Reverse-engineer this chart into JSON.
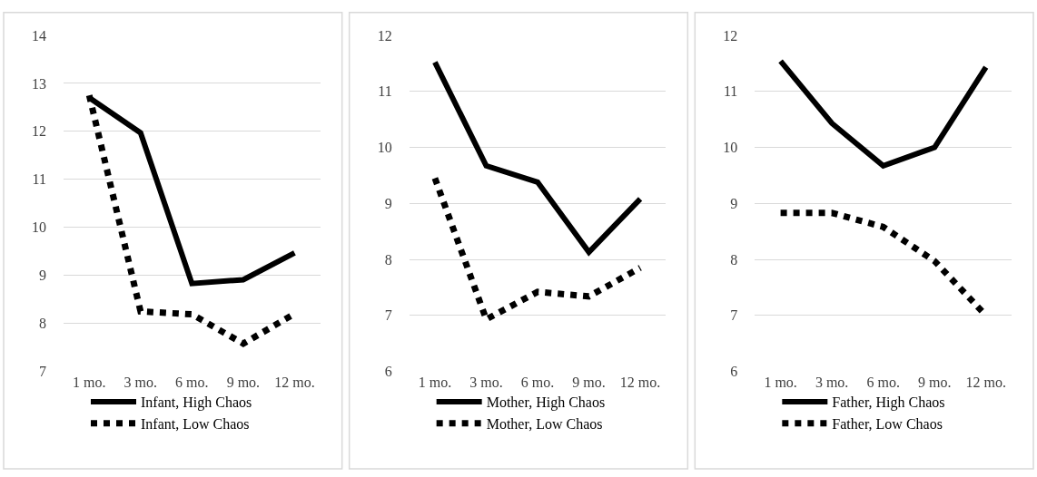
{
  "chart_data": [
    {
      "type": "line",
      "categories": [
        "1 mo.",
        "3 mo.",
        "6 mo.",
        "9 mo.",
        "12 mo."
      ],
      "ylim": [
        7,
        14
      ],
      "yticks": [
        7,
        8,
        9,
        10,
        11,
        12,
        13,
        14
      ],
      "grid": "y",
      "legend": "bottom",
      "series": [
        {
          "name": "Infant, High Chaos",
          "color": "#000000",
          "line_style": "solid",
          "values": [
            12.7,
            11.97,
            8.83,
            8.91,
            9.47
          ]
        },
        {
          "name": "Infant, Low Chaos",
          "color": "#000000",
          "line_style": "dotted",
          "values": [
            12.75,
            8.25,
            8.19,
            7.58,
            8.2
          ]
        }
      ]
    },
    {
      "type": "line",
      "categories": [
        "1 mo.",
        "3 mo.",
        "6 mo.",
        "9 mo.",
        "12 mo."
      ],
      "ylim": [
        6,
        12
      ],
      "yticks": [
        6,
        7,
        8,
        9,
        10,
        11,
        12
      ],
      "grid": "y",
      "legend": "bottom",
      "series": [
        {
          "name": "Mother, High Chaos",
          "color": "#000000",
          "line_style": "solid",
          "values": [
            11.52,
            9.67,
            9.38,
            8.13,
            9.08
          ]
        },
        {
          "name": "Mother, Low Chaos",
          "color": "#000000",
          "line_style": "dotted",
          "values": [
            9.45,
            6.93,
            7.42,
            7.34,
            7.85
          ]
        }
      ]
    },
    {
      "type": "line",
      "categories": [
        "1 mo.",
        "3 mo.",
        "6 mo.",
        "9 mo.",
        "12 mo."
      ],
      "ylim": [
        6,
        12
      ],
      "yticks": [
        6,
        7,
        8,
        9,
        10,
        11,
        12
      ],
      "grid": "y",
      "legend": "bottom",
      "series": [
        {
          "name": "Father, High Chaos",
          "color": "#000000",
          "line_style": "solid",
          "values": [
            11.54,
            10.43,
            9.67,
            10.0,
            11.43
          ]
        },
        {
          "name": "Father, Low Chaos",
          "color": "#000000",
          "line_style": "dotted",
          "values": [
            8.83,
            8.83,
            8.58,
            7.97,
            7.0
          ]
        }
      ]
    }
  ]
}
